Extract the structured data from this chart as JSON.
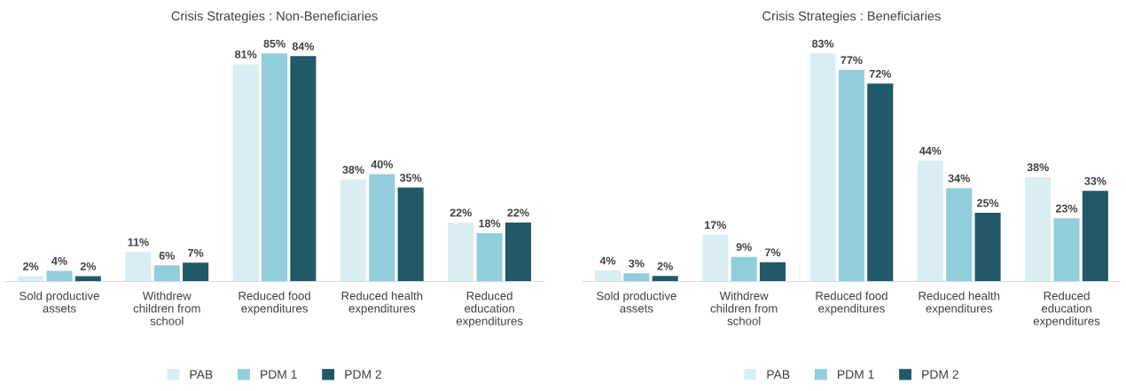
{
  "chart_data": [
    {
      "type": "bar",
      "title": "Crisis Strategies : Non-Beneficiaries",
      "categories": [
        "Sold productive\nassets",
        "Withdrew\nchildren from\nschool",
        "Reduced food\nexpenditures",
        "Reduced health\nexpenditures",
        "Reduced\neducation\nexpenditures"
      ],
      "series": [
        {
          "name": "PAB",
          "color": "#daedf2",
          "values": [
            2,
            11,
            81,
            38,
            22
          ],
          "value_labels": [
            "2%",
            "11%",
            "81%",
            "38%",
            "22%"
          ]
        },
        {
          "name": "PDM 1",
          "color": "#92cddc",
          "values": [
            4,
            6,
            85,
            40,
            18
          ],
          "value_labels": [
            "4%",
            "6%",
            "85%",
            "40%",
            "18%"
          ]
        },
        {
          "name": "PDM 2",
          "color": "#215968",
          "values": [
            2,
            7,
            84,
            35,
            22
          ],
          "value_labels": [
            "2%",
            "7%",
            "84%",
            "35%",
            "22%"
          ]
        }
      ],
      "legend": "bottom"
    },
    {
      "type": "bar",
      "title": "Crisis Strategies : Beneficiaries",
      "categories": [
        "Sold productive\nassets",
        "Withdrew\nchildren from\nschool",
        "Reduced food\nexpenditures",
        "Reduced health\nexpenditures",
        "Reduced\neducation\nexpenditures"
      ],
      "series": [
        {
          "name": "PAB",
          "color": "#daedf2",
          "values": [
            4,
            17,
            83,
            44,
            38
          ],
          "value_labels": [
            "4%",
            "17%",
            "83%",
            "44%",
            "38%"
          ]
        },
        {
          "name": "PDM 1",
          "color": "#92cddc",
          "values": [
            3,
            9,
            77,
            34,
            23
          ],
          "value_labels": [
            "3%",
            "9%",
            "77%",
            "34%",
            "23%"
          ]
        },
        {
          "name": "PDM 2",
          "color": "#215968",
          "values": [
            2,
            7,
            72,
            25,
            33
          ],
          "value_labels": [
            "2%",
            "7%",
            "72%",
            "25%",
            "33%"
          ]
        }
      ],
      "legend": "bottom"
    }
  ]
}
